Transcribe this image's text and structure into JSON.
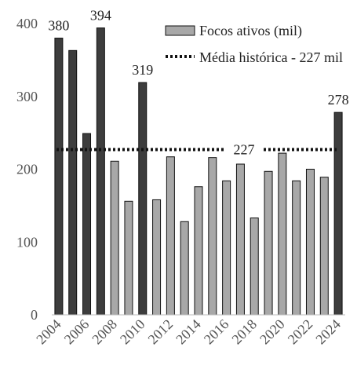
{
  "chart_data": {
    "type": "bar",
    "categories": [
      "2004",
      "2005",
      "2006",
      "2007",
      "2008",
      "2009",
      "2010",
      "2011",
      "2012",
      "2013",
      "2014",
      "2015",
      "2016",
      "2017",
      "2018",
      "2019",
      "2020",
      "2021",
      "2022",
      "2023",
      "2024"
    ],
    "series": [
      {
        "name": "Focos ativos (mil)",
        "values": [
          380,
          363,
          249,
          394,
          211,
          156,
          319,
          158,
          217,
          128,
          176,
          216,
          184,
          207,
          133,
          197,
          222,
          184,
          200,
          189,
          278
        ]
      }
    ],
    "highlighted": [
      "2004",
      "2005",
      "2006",
      "2007",
      "2010",
      "2024"
    ],
    "data_labels": [
      {
        "category": "2004",
        "text": "380"
      },
      {
        "category": "2007",
        "text": "394"
      },
      {
        "category": "2010",
        "text": "319"
      },
      {
        "category": "2024",
        "text": "278"
      }
    ],
    "reference_line": {
      "name": "Média histórica - 227 mil",
      "value": 227,
      "label": "227",
      "style": "dotted"
    },
    "x_tick_labels": [
      "2004",
      "2006",
      "2008",
      "2010",
      "2012",
      "2014",
      "2016",
      "2018",
      "2020",
      "2022",
      "2024"
    ],
    "y_ticks": [
      0,
      100,
      200,
      300,
      400
    ],
    "ylim": [
      0,
      400
    ],
    "xlabel": "",
    "ylabel": "",
    "title": "",
    "grid": false,
    "legend_position": "top-right",
    "colors": {
      "highlight_bar": "#3d3d3d",
      "normal_bar": "#a8a8a8",
      "bar_stroke": "#111111",
      "reference_line": "#111111",
      "axis": "#bbbbbb"
    }
  }
}
